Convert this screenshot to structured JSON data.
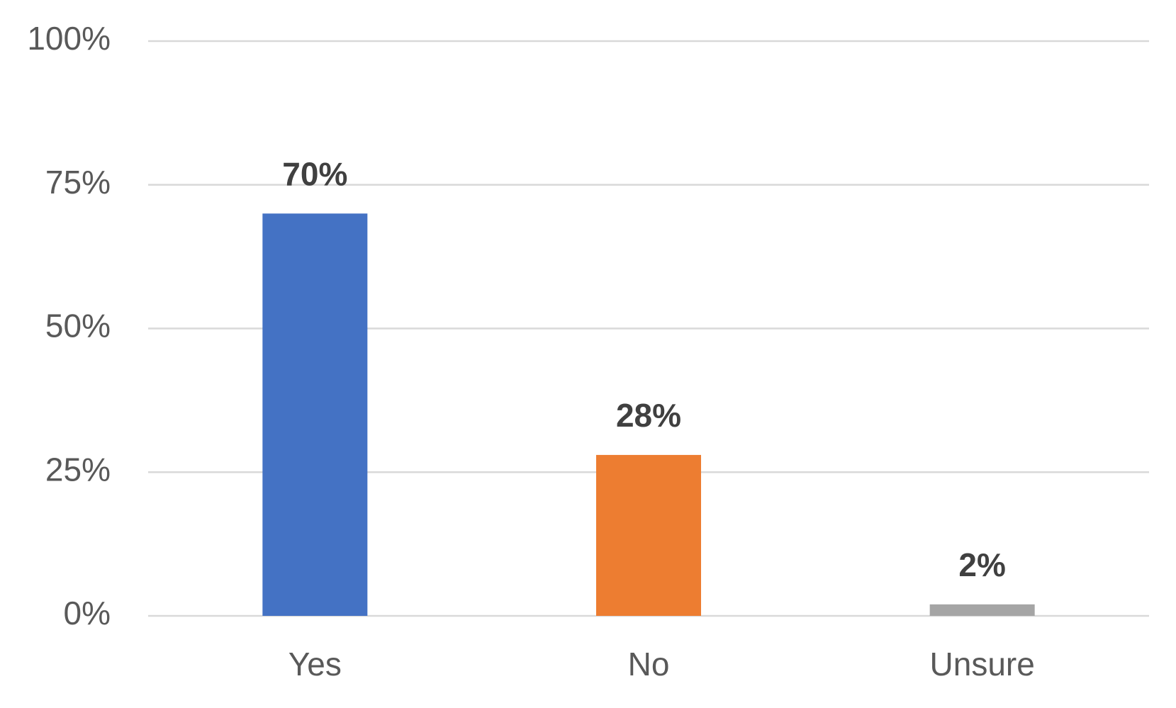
{
  "chart_data": {
    "type": "bar",
    "categories": [
      "Yes",
      "No",
      "Unsure"
    ],
    "values": [
      70,
      28,
      2
    ],
    "value_labels": [
      "70%",
      "28%",
      "2%"
    ],
    "colors": [
      "#4472c4",
      "#ed7d31",
      "#a5a5a5"
    ],
    "ylim": [
      0,
      100
    ],
    "yticks": [
      {
        "value": 0,
        "label": "0%"
      },
      {
        "value": 25,
        "label": "25%"
      },
      {
        "value": 50,
        "label": "50%"
      },
      {
        "value": 75,
        "label": "75%"
      },
      {
        "value": 100,
        "label": "100%"
      }
    ],
    "grid": true
  }
}
